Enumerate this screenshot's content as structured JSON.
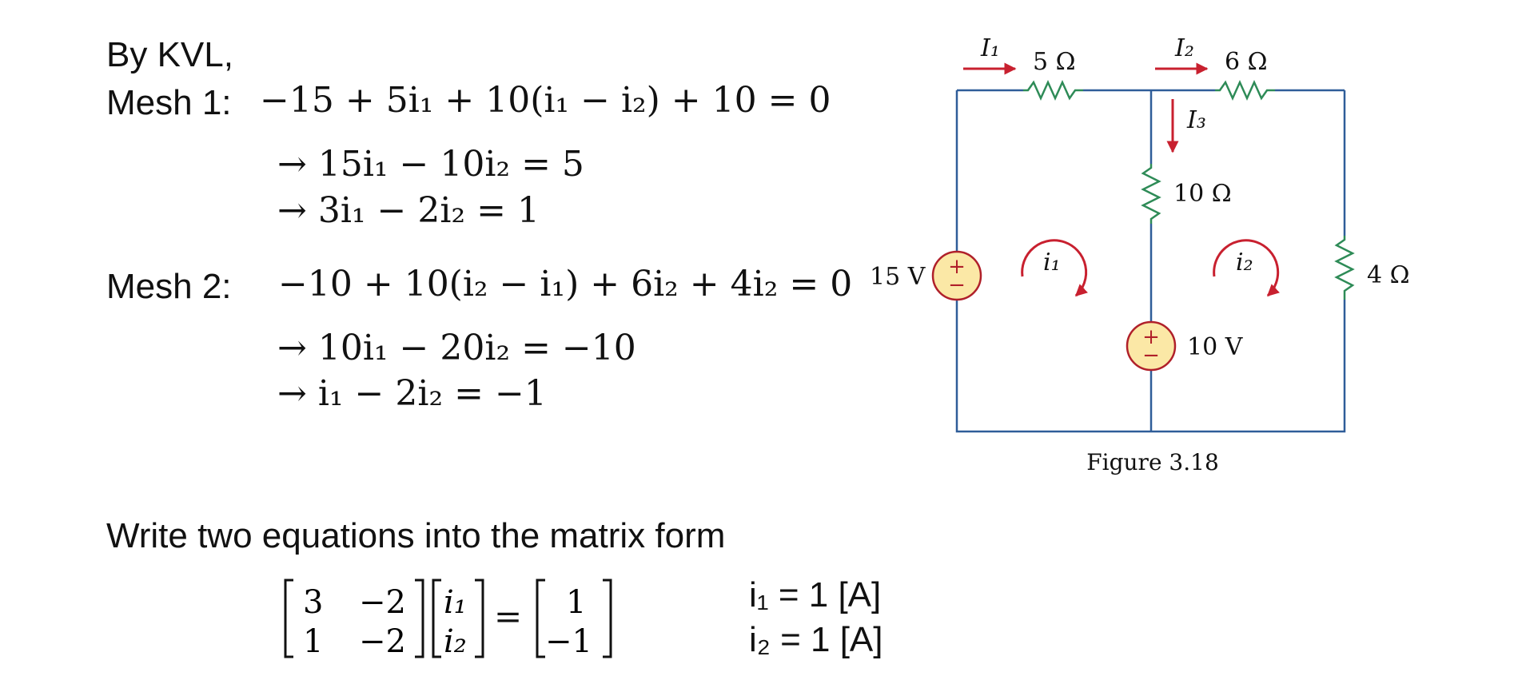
{
  "derivation": {
    "intro": "By KVL,",
    "mesh1": {
      "label": "Mesh 1:",
      "eq_a": "−15 + 5i₁ + 10(i₁ − i₂) + 10 = 0",
      "eq_b": "→ 15i₁ − 10i₂ = 5",
      "eq_c": "→ 3i₁ − 2i₂ = 1"
    },
    "mesh2": {
      "label": "Mesh 2:",
      "eq_a": "−10 + 10(i₂ − i₁) + 6i₂ + 4i₂ = 0",
      "eq_b": "→ 10i₁ − 20i₂ = −10",
      "eq_c": "→ i₁ − 2i₂ = −1"
    }
  },
  "matrix_section": {
    "heading": "Write two equations into the matrix form",
    "coeff": [
      [
        "3",
        "−2"
      ],
      [
        "1",
        "−2"
      ]
    ],
    "unknowns": [
      "i₁",
      "i₂"
    ],
    "rhs": [
      "1",
      "−1"
    ],
    "equals": "=",
    "results": [
      "i₁ = 1 [A]",
      "i₂ = 1 [A]"
    ]
  },
  "circuit": {
    "caption": "Figure 3.18",
    "sources": [
      {
        "id": "vs1",
        "label": "15 V",
        "plus": "+",
        "minus": "−"
      },
      {
        "id": "vs2",
        "label": "10 V",
        "plus": "+",
        "minus": "−"
      }
    ],
    "resistors": [
      "5 Ω",
      "6 Ω",
      "10 Ω",
      "4 Ω"
    ],
    "branch_currents": [
      "I₁",
      "I₂",
      "I₃"
    ],
    "mesh_currents": [
      "i₁",
      "i₂"
    ],
    "colors": {
      "wire": "#2f5d99",
      "resistor": "#2e8b57",
      "arrow": "#c8202f",
      "source_fill": "#fbe8a6",
      "source_stroke": "#b0202a"
    }
  }
}
